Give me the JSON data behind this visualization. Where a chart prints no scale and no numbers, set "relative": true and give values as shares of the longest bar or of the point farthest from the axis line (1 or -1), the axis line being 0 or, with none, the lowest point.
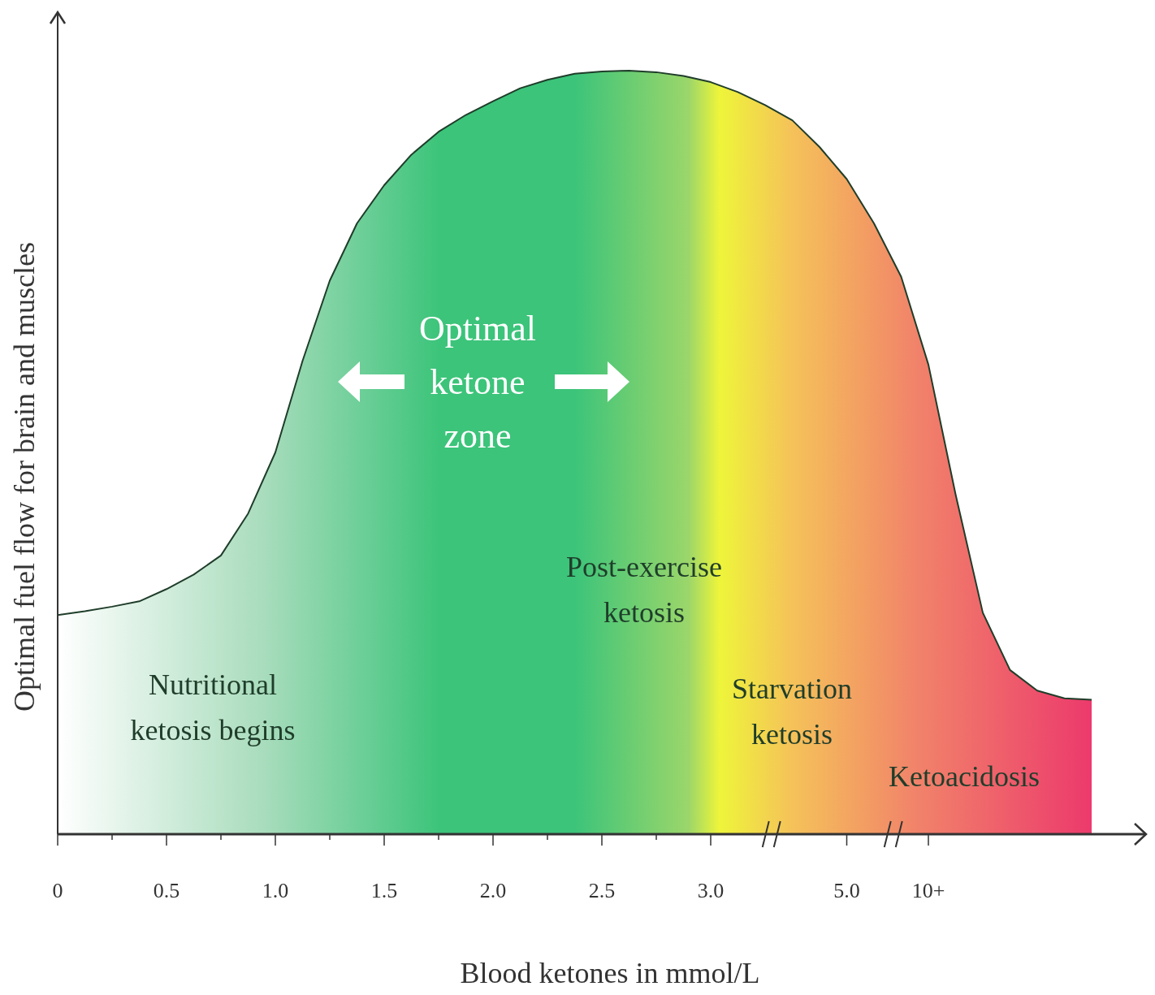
{
  "chart_data": {
    "type": "area",
    "relative": true,
    "xlabel": "Blood ketones in mmol/L",
    "ylabel": "Optimal fuel flow for brain and muscles",
    "categories": [
      "0",
      null,
      null,
      null,
      "0.5",
      null,
      null,
      null,
      "1.0",
      null,
      null,
      null,
      "1.5",
      null,
      null,
      null,
      "2.0",
      null,
      null,
      null,
      "2.5",
      null,
      null,
      null,
      "3.0",
      null,
      null,
      null,
      null,
      "5.0",
      null,
      null,
      "10+",
      null,
      null,
      null,
      null,
      null,
      null
    ],
    "series": [
      {
        "color": "#3cc47a",
        "values": [
          0.287,
          0.292,
          0.298,
          0.305,
          0.321,
          0.34,
          0.365,
          0.42,
          0.5,
          0.62,
          0.725,
          0.8,
          0.85,
          0.89,
          0.92,
          0.942,
          0.96,
          0.977,
          0.988,
          0.996,
          0.999,
          1.0,
          0.998,
          0.993,
          0.985,
          0.972,
          0.955,
          0.935,
          0.9,
          0.858,
          0.8,
          0.73,
          0.615,
          0.445,
          0.29,
          0.215,
          0.188,
          0.178,
          0.176
        ]
      }
    ],
    "annotations": [
      "Optimal ketone zone",
      "Post-exercise ketosis",
      "Nutritional ketosis begins",
      "Starvation ketosis",
      "Ketoacidosis"
    ]
  }
}
